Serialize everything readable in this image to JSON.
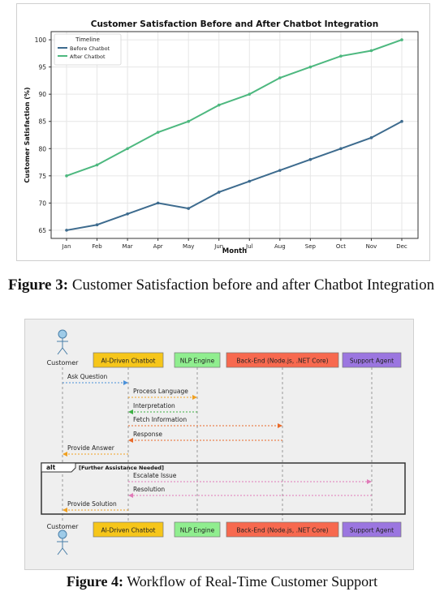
{
  "figure3": {
    "caption_label": "Figure 3:",
    "caption_text": "Customer Satisfaction before and after Chatbot Integration",
    "chart_data": {
      "type": "line",
      "title": "Customer Satisfaction Before and After Chatbot Integration",
      "xlabel": "Month",
      "ylabel": "Customer Satisfaction (%)",
      "categories": [
        "Jan",
        "Feb",
        "Mar",
        "Apr",
        "May",
        "Jun",
        "Jul",
        "Aug",
        "Sep",
        "Oct",
        "Nov",
        "Dec"
      ],
      "ylim": [
        63.5,
        101.5
      ],
      "yticks": [
        65,
        70,
        75,
        80,
        85,
        90,
        95,
        100
      ],
      "grid": true,
      "legend_title": "Timeline",
      "legend_position": "top-left",
      "series": [
        {
          "name": "Before Chatbot",
          "color": "#3d6b8e",
          "values": [
            65,
            66,
            68,
            70,
            69,
            72,
            74,
            76,
            78,
            80,
            82,
            85
          ]
        },
        {
          "name": "After Chatbot",
          "color": "#4db87f",
          "values": [
            75,
            77,
            80,
            83,
            85,
            88,
            90,
            93,
            95,
            97,
            98,
            100
          ]
        }
      ]
    }
  },
  "figure4": {
    "caption_label": "Figure 4:",
    "caption_text": "Workflow of Real-Time Customer Support",
    "actor_label": "Customer",
    "participants": [
      {
        "label": "AI-Driven Chatbot",
        "color": "#f6c61a"
      },
      {
        "label": "NLP Engine",
        "color": "#90ee8f"
      },
      {
        "label": "Back-End (Node.js, .NET Core)",
        "color": "#f7694f"
      },
      {
        "label": "Support Agent",
        "color": "#9b76e0"
      }
    ],
    "messages": [
      {
        "label": "Ask Question",
        "color": "#4a90d9"
      },
      {
        "label": "Process Language",
        "color": "#f0a020"
      },
      {
        "label": "Interpretation",
        "color": "#3cb043"
      },
      {
        "label": "Fetch Information",
        "color": "#e86a2a"
      },
      {
        "label": "Response",
        "color": "#e86a2a"
      },
      {
        "label": "Provide Answer",
        "color": "#f0a020"
      },
      {
        "label": "Escalate Issue",
        "color": "#e07ab8"
      },
      {
        "label": "Resolution",
        "color": "#e07ab8"
      },
      {
        "label": "Provide Solution",
        "color": "#f0a020"
      }
    ],
    "alt_keyword": "alt",
    "alt_condition": "[Further Assistance Needed]"
  }
}
